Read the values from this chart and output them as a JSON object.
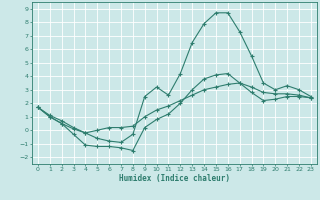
{
  "xlabel": "Humidex (Indice chaleur)",
  "ylabel": "",
  "background_color": "#cce8e8",
  "grid_color": "#ffffff",
  "line_color": "#2e7d6e",
  "xlim": [
    -0.5,
    23.5
  ],
  "ylim": [
    -2.5,
    9.5
  ],
  "xticks": [
    0,
    1,
    2,
    3,
    4,
    5,
    6,
    7,
    8,
    9,
    10,
    11,
    12,
    13,
    14,
    15,
    16,
    17,
    18,
    19,
    20,
    21,
    22,
    23
  ],
  "yticks": [
    -2,
    -1,
    0,
    1,
    2,
    3,
    4,
    5,
    6,
    7,
    8,
    9
  ],
  "curve1_x": [
    0,
    1,
    2,
    3,
    4,
    5,
    6,
    7,
    8,
    9,
    10,
    11,
    12,
    13,
    14,
    15,
    16,
    17,
    18,
    19,
    20,
    21,
    22,
    23
  ],
  "curve1_y": [
    1.7,
    1.1,
    0.7,
    0.2,
    -0.2,
    -0.6,
    -0.8,
    -0.9,
    -0.3,
    2.5,
    3.2,
    2.6,
    4.2,
    6.5,
    7.9,
    8.7,
    8.7,
    7.3,
    5.5,
    3.5,
    3.0,
    3.3,
    3.0,
    2.5
  ],
  "curve2_x": [
    0,
    1,
    2,
    3,
    4,
    5,
    6,
    7,
    8,
    9,
    10,
    11,
    12,
    13,
    14,
    15,
    16,
    17,
    18,
    19,
    20,
    21,
    22,
    23
  ],
  "curve2_y": [
    1.7,
    1.0,
    0.5,
    -0.3,
    -1.1,
    -1.2,
    -1.2,
    -1.3,
    -1.5,
    0.2,
    0.8,
    1.2,
    2.0,
    3.0,
    3.8,
    4.1,
    4.2,
    3.5,
    2.8,
    2.2,
    2.3,
    2.5,
    2.5,
    2.4
  ],
  "curve3_x": [
    0,
    1,
    2,
    3,
    4,
    5,
    6,
    7,
    8,
    9,
    10,
    11,
    12,
    13,
    14,
    15,
    16,
    17,
    18,
    19,
    20,
    21,
    22,
    23
  ],
  "curve3_y": [
    1.7,
    1.0,
    0.5,
    0.1,
    -0.2,
    0.0,
    0.2,
    0.2,
    0.3,
    1.0,
    1.5,
    1.8,
    2.2,
    2.6,
    3.0,
    3.2,
    3.4,
    3.5,
    3.2,
    2.8,
    2.7,
    2.7,
    2.6,
    2.4
  ]
}
